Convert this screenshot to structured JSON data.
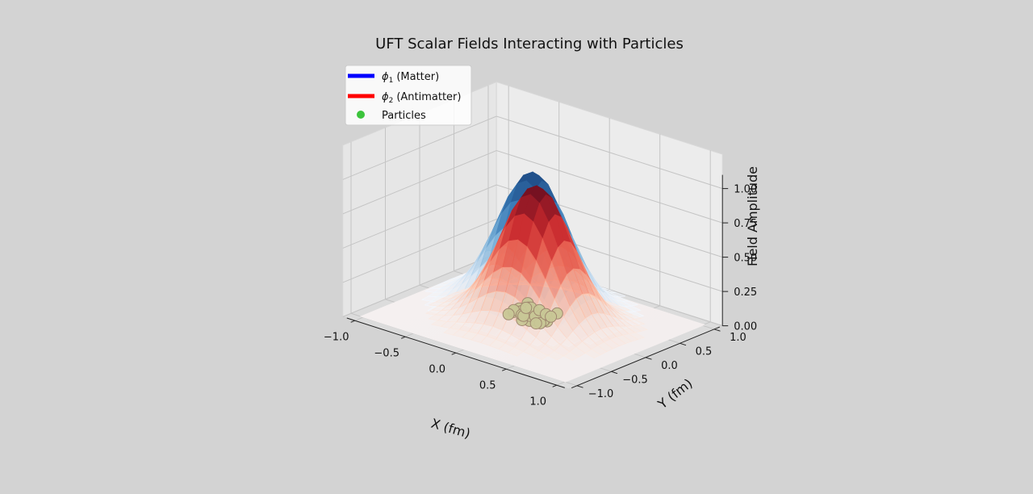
{
  "chart_data": {
    "type": "surface3d",
    "title": "UFT Scalar Fields Interacting with Particles",
    "xlabel": "X (fm)",
    "ylabel": "Y (fm)",
    "zlabel": "Field Amplitude",
    "xlim": [
      -1.0,
      1.0
    ],
    "ylim": [
      -1.0,
      1.0
    ],
    "zlim": [
      0.0,
      1.0
    ],
    "x_ticks": [
      "−1.0",
      "−0.5",
      "0.0",
      "0.5",
      "1.0"
    ],
    "y_ticks": [
      "−1.0",
      "−0.5",
      "0.0",
      "0.5",
      "1.0"
    ],
    "z_ticks": [
      "0.00",
      "0.25",
      "0.50",
      "0.75",
      "1.00"
    ],
    "grid": true,
    "legend_position": "upper-left",
    "series": [
      {
        "name": "(Matter)",
        "symbol": "ϕ",
        "subscript": "1",
        "kind": "surface",
        "colormap": "Blues",
        "legend_color": "#0000ff",
        "center": [
          0.0,
          0.0
        ],
        "peak": 1.0
      },
      {
        "name": "(Antimatter)",
        "symbol": "ϕ",
        "subscript": "2",
        "kind": "surface",
        "colormap": "Reds",
        "legend_color": "#ff0000",
        "center": [
          0.0,
          0.0
        ],
        "peak": 1.0
      },
      {
        "name": "Particles",
        "kind": "scatter",
        "legend_color": "#3cc43c",
        "marker_fill": "#c8c796",
        "marker_edge": "#a08870",
        "count": 40,
        "z": 0.0
      }
    ]
  }
}
